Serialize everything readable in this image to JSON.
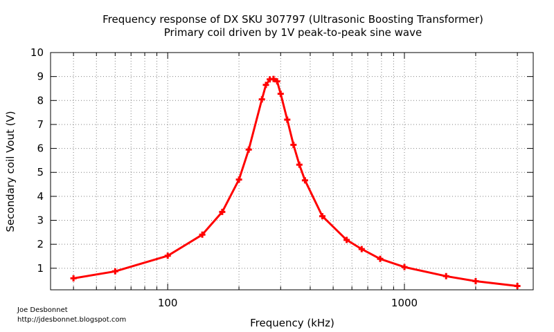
{
  "chart_data": {
    "type": "line",
    "title": "Frequency response of DX SKU 307797 (Ultrasonic Boosting Transformer)",
    "subtitle": "Primary coil driven by 1V peak-to-peak sine wave",
    "xlabel": "Frequency (kHz)",
    "ylabel": "Secondary coil Vout (V)",
    "xscale": "log",
    "xlim": [
      32,
      3500
    ],
    "ylim": [
      0.1,
      10
    ],
    "xticks": [
      100,
      1000
    ],
    "xtick_labels": [
      "100",
      "1000"
    ],
    "yticks": [
      1,
      2,
      3,
      4,
      5,
      6,
      7,
      8,
      9,
      10
    ],
    "ytick_labels": [
      "1",
      "2",
      "3",
      "4",
      "5",
      "6",
      "7",
      "8",
      "9",
      "10"
    ],
    "grid": true,
    "line_color": "#ff0000",
    "marker": "plus",
    "series": [
      {
        "x": [
          40,
          60,
          100,
          140,
          170,
          200,
          220,
          250,
          260,
          270,
          280,
          290,
          300,
          320,
          340,
          360,
          380,
          450,
          570,
          660,
          790,
          1000,
          1500,
          2000,
          3000
        ],
        "y": [
          0.58,
          0.87,
          1.52,
          2.4,
          3.35,
          4.7,
          5.95,
          8.05,
          8.65,
          8.88,
          8.9,
          8.8,
          8.28,
          7.2,
          6.15,
          5.32,
          4.67,
          3.17,
          2.18,
          1.8,
          1.39,
          1.05,
          0.67,
          0.46,
          0.26
        ]
      }
    ]
  },
  "credit": {
    "author": "Joe Desbonnet",
    "url": "http://jdesbonnet.blogspot.com"
  }
}
